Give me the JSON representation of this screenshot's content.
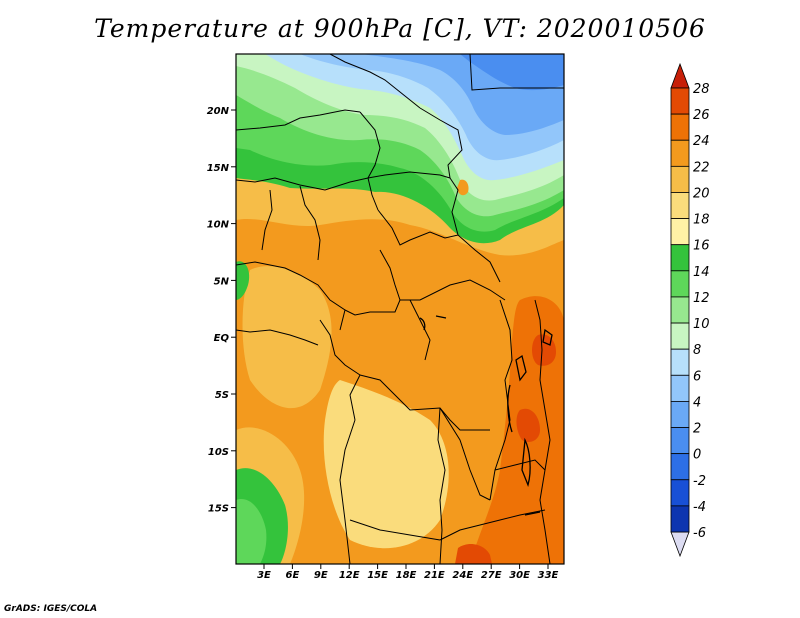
{
  "title": "Temperature at 900hPa [C], VT: 2020010506",
  "footer": "GrADS: IGES/COLA",
  "map": {
    "lat_labels": [
      "20N",
      "15N",
      "10N",
      "5N",
      "EQ",
      "5S",
      "10S",
      "15S"
    ],
    "lon_labels": [
      "3E",
      "6E",
      "9E",
      "12E",
      "15E",
      "18E",
      "21E",
      "24E",
      "27E",
      "30E",
      "33E"
    ]
  },
  "colorbar": {
    "labels": [
      "-6",
      "-4",
      "-2",
      "0",
      "2",
      "4",
      "6",
      "8",
      "10",
      "12",
      "14",
      "16",
      "18",
      "20",
      "22",
      "24",
      "26",
      "28"
    ],
    "colors": [
      "#0b1b7a",
      "#0d35b0",
      "#1850d6",
      "#2d6fe6",
      "#4a8ef0",
      "#6aa9f6",
      "#92c6fa",
      "#b7e0fb",
      "#c8f5c2",
      "#97e88f",
      "#5ed75a",
      "#34c33c",
      "#fff2a6",
      "#fadc7c",
      "#f6bd48",
      "#f39a1e",
      "#ee7206",
      "#e34a04",
      "#c71f08"
    ]
  }
}
